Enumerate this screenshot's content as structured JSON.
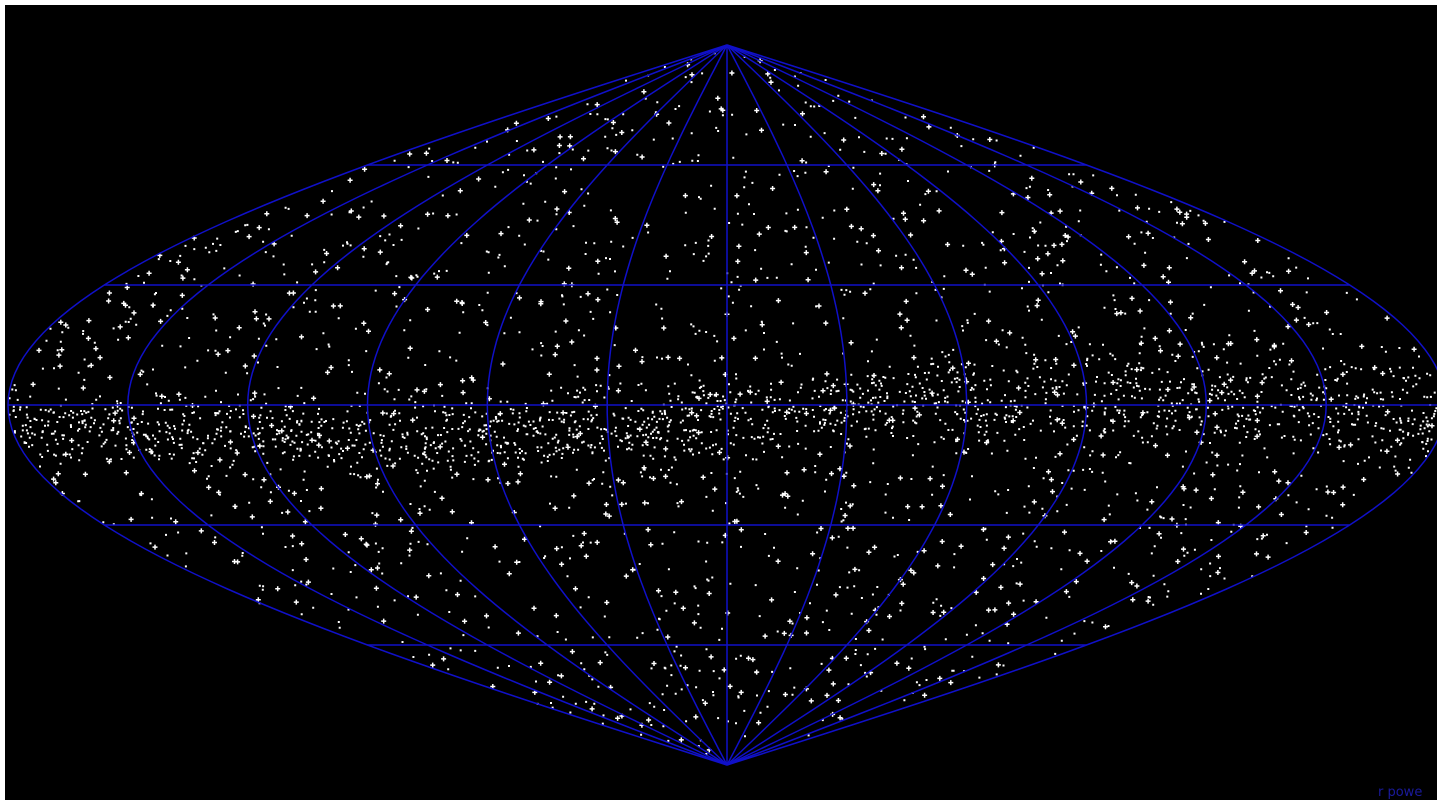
{
  "footer": {
    "credit": "r powe"
  }
}
